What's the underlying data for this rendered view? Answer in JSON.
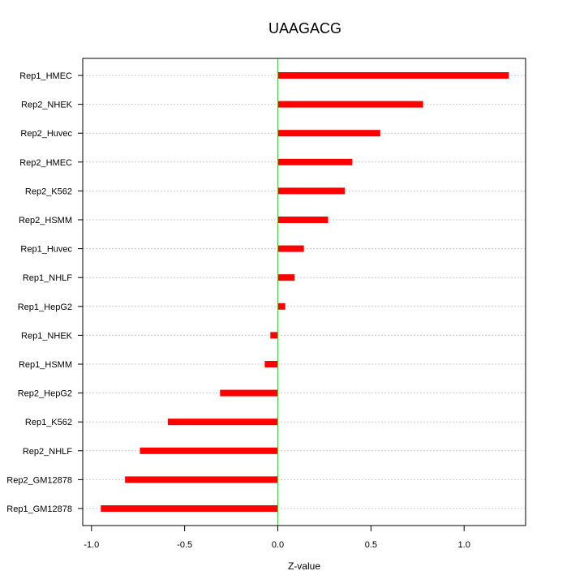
{
  "chart_data": {
    "type": "bar",
    "orientation": "horizontal",
    "title": "UAAGACG",
    "xlabel": "Z-value",
    "ylabel": "",
    "xlim": [
      -1.04,
      1.33
    ],
    "xticks": [
      -1.0,
      -0.5,
      0.0,
      0.5,
      1.0
    ],
    "xtick_labels": [
      "-1.0",
      "-0.5",
      "0.0",
      "0.5",
      "1.0"
    ],
    "grid": true,
    "categories": [
      "Rep1_HMEC",
      "Rep2_NHEK",
      "Rep2_Huvec",
      "Rep2_HMEC",
      "Rep2_K562",
      "Rep2_HSMM",
      "Rep1_Huvec",
      "Rep1_NHLF",
      "Rep1_HepG2",
      "Rep1_NHEK",
      "Rep1_HSMM",
      "Rep2_HepG2",
      "Rep1_K562",
      "Rep2_NHLF",
      "Rep2_GM12878",
      "Rep1_GM12878"
    ],
    "values": [
      1.24,
      0.78,
      0.55,
      0.4,
      0.36,
      0.27,
      0.14,
      0.09,
      0.04,
      -0.04,
      -0.07,
      -0.31,
      -0.59,
      -0.74,
      -0.82,
      -0.95
    ],
    "colors": {
      "bar": "#ff0000",
      "zero_line": "#00ff00",
      "grid": "#cccccc"
    }
  }
}
